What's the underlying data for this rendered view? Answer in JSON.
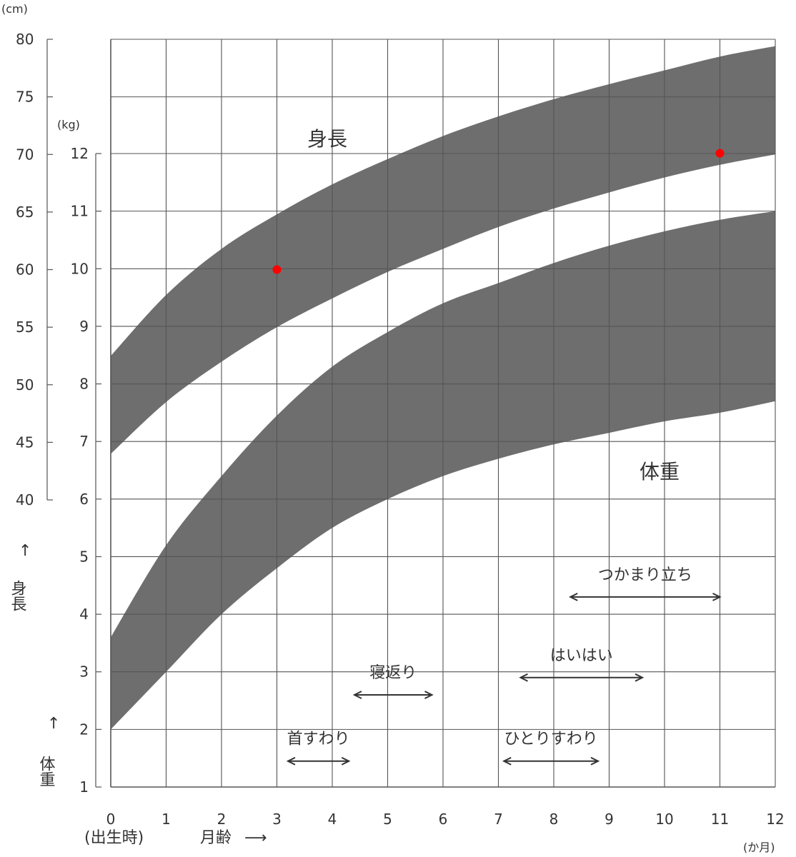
{
  "chart_data": {
    "type": "area",
    "x_ticks": [
      "0",
      "1",
      "2",
      "3",
      "4",
      "5",
      "6",
      "7",
      "8",
      "9",
      "10",
      "11",
      "12"
    ],
    "x_birth_label": "(出生時)",
    "x_label": "月齢",
    "x_unit": "(か月)",
    "xlim": [
      0,
      12
    ],
    "grid": true,
    "height_axis": {
      "unit": "(cm)",
      "label": "身長",
      "ticks": [
        "80",
        "75",
        "70",
        "65",
        "60",
        "55",
        "50",
        "45",
        "40"
      ],
      "ylim": [
        40,
        80
      ]
    },
    "weight_axis": {
      "unit": "(kg)",
      "label": "体重",
      "ticks": [
        "12",
        "11",
        "10",
        "9",
        "8",
        "7",
        "6",
        "5",
        "4",
        "3",
        "2",
        "1"
      ],
      "ylim": [
        1,
        12
      ]
    },
    "series": [
      {
        "name": "身長",
        "axis": "height",
        "x": [
          0,
          1,
          2,
          3,
          4,
          5,
          6,
          7,
          8,
          9,
          10,
          11,
          12
        ],
        "lower": [
          44.0,
          48.5,
          52.0,
          55.0,
          57.5,
          59.8,
          61.8,
          63.7,
          65.3,
          66.7,
          68.0,
          69.1,
          70.0
        ],
        "upper": [
          52.5,
          57.8,
          61.8,
          64.8,
          67.4,
          69.6,
          71.6,
          73.3,
          74.8,
          76.1,
          77.3,
          78.5,
          79.4
        ]
      },
      {
        "name": "体重",
        "axis": "weight",
        "x": [
          0,
          1,
          2,
          3,
          4,
          5,
          6,
          7,
          8,
          9,
          10,
          11,
          12
        ],
        "lower": [
          2.0,
          3.0,
          4.0,
          4.8,
          5.5,
          6.0,
          6.4,
          6.7,
          6.95,
          7.15,
          7.35,
          7.5,
          7.7
        ],
        "upper": [
          3.6,
          5.2,
          6.4,
          7.45,
          8.3,
          8.9,
          9.4,
          9.75,
          10.1,
          10.4,
          10.65,
          10.85,
          11.0
        ]
      }
    ],
    "points": [
      {
        "x": 3,
        "height": 60.0,
        "color": "#ff0000"
      },
      {
        "x": 11,
        "height": 70.1,
        "color": "#ff0000"
      }
    ],
    "milestones": [
      {
        "label": "首すわり",
        "start": 3.2,
        "end": 4.3,
        "weight_level": 1.45
      },
      {
        "label": "寝返り",
        "start": 4.4,
        "end": 5.8,
        "weight_level": 2.6
      },
      {
        "label": "ひとりすわり",
        "start": 7.1,
        "end": 8.8,
        "weight_level": 1.45
      },
      {
        "label": "はいはい",
        "start": 7.4,
        "end": 9.6,
        "weight_level": 2.9
      },
      {
        "label": "つかまり立ち",
        "start": 8.3,
        "end": 11.0,
        "weight_level": 4.3
      }
    ],
    "colors": {
      "band": "#6e6e6e",
      "grid": "#555555",
      "point": "#ff0000",
      "text": "#333333"
    }
  }
}
